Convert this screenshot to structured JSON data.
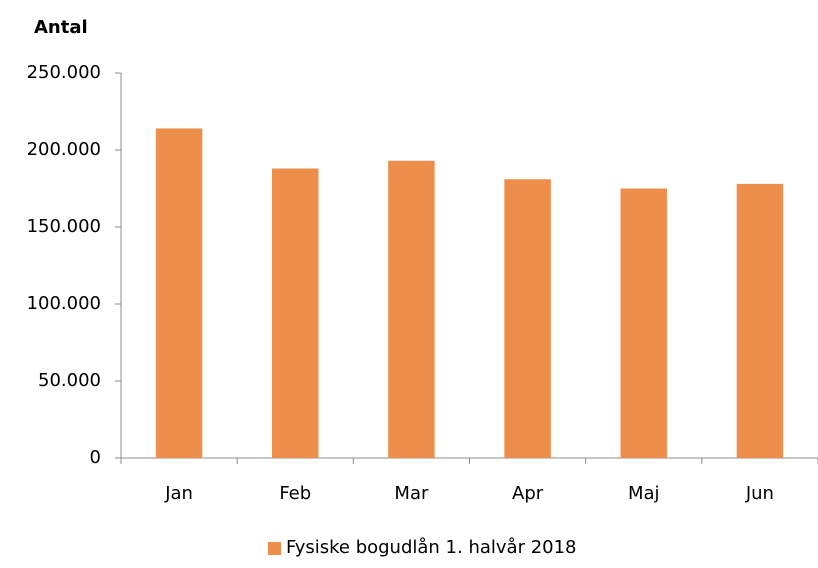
{
  "chart_data": {
    "type": "bar",
    "y_label": "Antal",
    "categories": [
      "Jan",
      "Feb",
      "Mar",
      "Apr",
      "Maj",
      "Jun"
    ],
    "series": [
      {
        "name": "Fysiske bogudlån 1. halvår 2018",
        "color": "#ed8e4b",
        "values": [
          214000,
          188000,
          193000,
          181000,
          175000,
          178000
        ]
      }
    ],
    "ylim": [
      0,
      250000
    ],
    "yticks": [
      0,
      {
        "value": 50000,
        "label": "50.000"
      },
      {
        "value": 100000,
        "label": "100.000"
      },
      {
        "value": 150000,
        "label": "150.000"
      },
      {
        "value": 200000,
        "label": "200.000"
      },
      {
        "value": 250000,
        "label": "250.000"
      }
    ],
    "grid": false,
    "legend": "bottom"
  }
}
